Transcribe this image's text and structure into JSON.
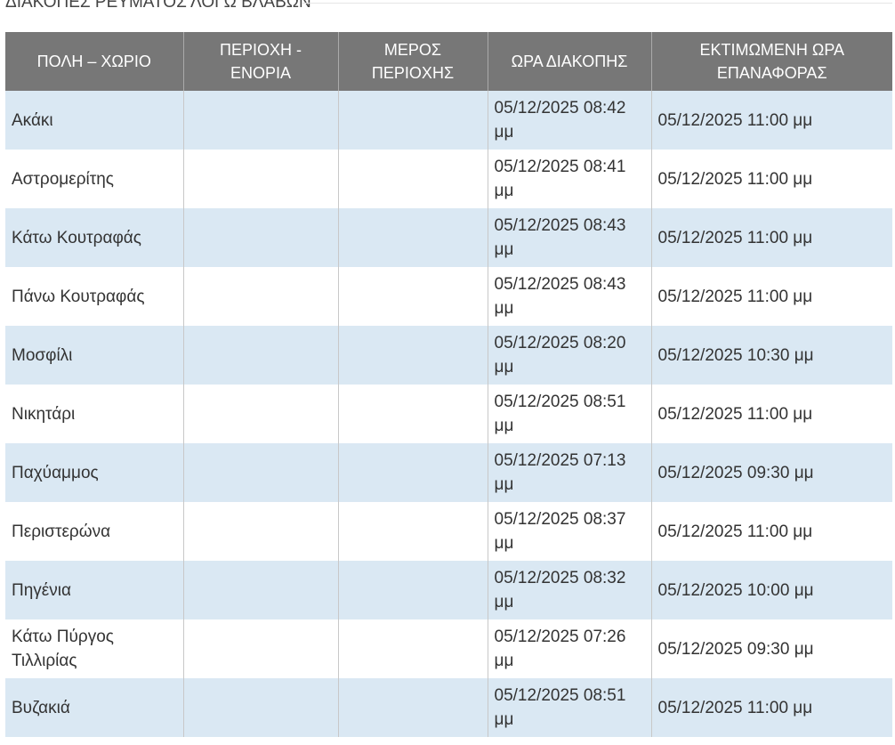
{
  "title": "ΔΙΑΚΟΠΕΣ ΡΕΥΜΑΤΟΣ ΛΟΓΩ ΒΛΑΒΩΝ",
  "table": {
    "headers": [
      "ΠΟΛΗ – ΧΩΡΙΟ",
      "ΠΕΡΙΟΧΗ - ΕΝΟΡΙΑ",
      "ΜΕΡΟΣ ΠΕΡΙΟΧΗΣ",
      "ΩΡΑ ΔΙΑΚΟΠΗΣ",
      "ΕΚΤΙΜΩΜΕΝΗ ΩΡΑ ΕΠΑΝΑΦΟΡΑΣ"
    ],
    "rows": [
      {
        "place": "Ακάκι",
        "outage": "05/12/2025 08:42 μμ",
        "restore": "05/12/2025 11:00 μμ"
      },
      {
        "place": "Αστρομερίτης",
        "outage": "05/12/2025 08:41 μμ",
        "restore": "05/12/2025 11:00 μμ"
      },
      {
        "place": "Κάτω Κουτραφάς",
        "outage": "05/12/2025 08:43 μμ",
        "restore": "05/12/2025 11:00 μμ"
      },
      {
        "place": "Πάνω Κουτραφάς",
        "outage": "05/12/2025 08:43 μμ",
        "restore": "05/12/2025 11:00 μμ"
      },
      {
        "place": "Μοσφίλι",
        "outage": "05/12/2025 08:20 μμ",
        "restore": "05/12/2025 10:30 μμ"
      },
      {
        "place": "Νικητάρι",
        "outage": "05/12/2025 08:51 μμ",
        "restore": "05/12/2025 11:00 μμ"
      },
      {
        "place": "Παχύαμμος",
        "outage": "05/12/2025 07:13 μμ",
        "restore": "05/12/2025 09:30 μμ"
      },
      {
        "place": "Περιστερώνα",
        "outage": "05/12/2025 08:37 μμ",
        "restore": "05/12/2025 11:00 μμ"
      },
      {
        "place": "Πηγένια",
        "outage": "05/12/2025 08:32 μμ",
        "restore": "05/12/2025 10:00 μμ"
      },
      {
        "place": "Κάτω Πύργος Τιλλιρίας",
        "outage": "05/12/2025 07:26 μμ",
        "restore": "05/12/2025 09:30 μμ"
      },
      {
        "place": "Βυζακιά",
        "outage": "05/12/2025 08:51 μμ",
        "restore": "05/12/2025 11:00 μμ"
      }
    ]
  }
}
